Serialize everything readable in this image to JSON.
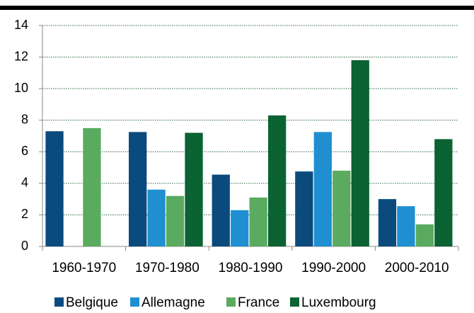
{
  "chart_data": {
    "type": "bar",
    "categories": [
      "1960-1970",
      "1970-1980",
      "1980-1990",
      "1990-2000",
      "2000-2010"
    ],
    "series": [
      {
        "name": "Belgique",
        "color": "#0b4a7d",
        "values": [
          7.3,
          7.25,
          4.55,
          4.75,
          3.0
        ]
      },
      {
        "name": "Allemagne",
        "color": "#1f8fd1",
        "values": [
          null,
          3.6,
          2.3,
          7.25,
          2.55
        ]
      },
      {
        "name": "France",
        "color": "#5aab5f",
        "values": [
          7.5,
          3.2,
          3.1,
          4.8,
          1.4
        ]
      },
      {
        "name": "Luxembourg",
        "color": "#0b6233",
        "values": [
          null,
          7.2,
          8.3,
          11.8,
          6.8
        ]
      }
    ],
    "ylim": [
      0,
      14
    ],
    "yticks": [
      0,
      2,
      4,
      6,
      8,
      10,
      12,
      14
    ],
    "grid": true,
    "legend": "bottom"
  }
}
